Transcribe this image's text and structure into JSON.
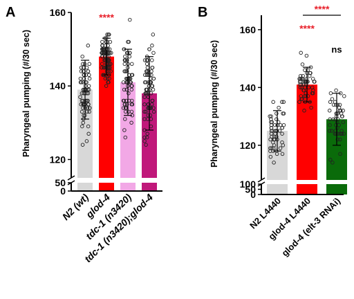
{
  "chart_data": [
    {
      "type": "bar",
      "panel_label": "A",
      "ylabel": "Pharyngeal pumping (#/30 sec)",
      "axis_break": true,
      "ylim_lower": [
        0,
        50
      ],
      "ylim_upper": [
        115,
        160
      ],
      "yticks_lower": [
        "0",
        "50"
      ],
      "yticks_upper": [
        "120",
        "140",
        "160"
      ],
      "categories": [
        "N2 (wt)",
        "glod-4",
        "tdc-1 (n3420)",
        "tdc-1 (n3420);glod-4"
      ],
      "values": [
        139,
        148,
        141,
        138
      ],
      "sd": [
        8,
        5,
        9,
        10
      ],
      "colors": [
        "#d8d8d8",
        "#ff0000",
        "#f2a8e6",
        "#c0187a"
      ],
      "annotations": [
        {
          "category": 1,
          "text": "****",
          "color": "#e8202a"
        }
      ]
    },
    {
      "type": "bar",
      "panel_label": "B",
      "ylabel": "Pharyngeal pumping (#/30 sec)",
      "axis_break": true,
      "ylim_lower": [
        0,
        100
      ],
      "ylim_upper": [
        108,
        165
      ],
      "yticks_lower": [
        "0",
        "50",
        "100"
      ],
      "yticks_upper": [
        "120",
        "140",
        "160"
      ],
      "categories": [
        "N2 L4440",
        "glod-4 L4440",
        "glod-4 (elt-3 RNAi)"
      ],
      "values": [
        125,
        141,
        129
      ],
      "sd": [
        7,
        6,
        9
      ],
      "colors": [
        "#d8d8d8",
        "#ff0000",
        "#0a6b0a"
      ],
      "annotations": [
        {
          "category": 1,
          "text": "****",
          "color": "#e8202a"
        },
        {
          "category": 2,
          "text": "ns",
          "color": "#000000"
        }
      ],
      "comparison": {
        "from": 1,
        "to": 2,
        "text": "****",
        "color": "#e8202a"
      }
    }
  ]
}
